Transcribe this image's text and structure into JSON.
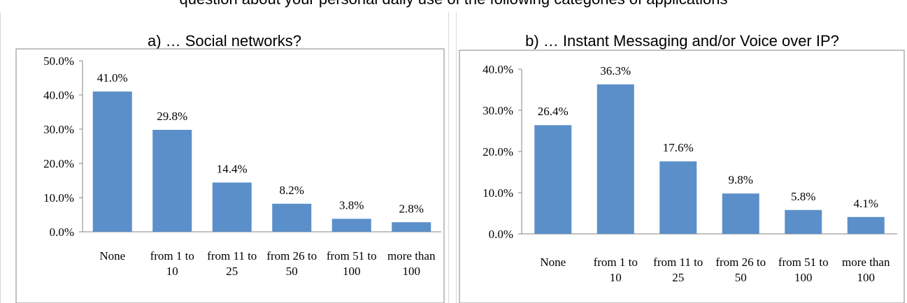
{
  "header": {
    "text": "question about your personal daily use of the following categories of applications"
  },
  "colors": {
    "bar": "#5b8fc9",
    "frame": "#868686"
  },
  "chart_data": [
    {
      "type": "bar",
      "title": "a) … Social networks?",
      "categories": [
        [
          "None"
        ],
        [
          "from 1 to",
          "10"
        ],
        [
          "from 11 to",
          "25"
        ],
        [
          "from 26 to",
          "50"
        ],
        [
          "from 51 to",
          "100"
        ],
        [
          "more than",
          "100"
        ]
      ],
      "values": [
        41.0,
        29.8,
        14.4,
        8.2,
        3.8,
        2.8
      ],
      "value_labels": [
        "41.0%",
        "29.8%",
        "14.4%",
        "8.2%",
        "3.8%",
        "2.8%"
      ],
      "yticks": [
        "0.0%",
        "10.0%",
        "20.0%",
        "30.0%",
        "40.0%",
        "50.0%"
      ],
      "ylim": [
        0,
        50
      ],
      "grid": false
    },
    {
      "type": "bar",
      "title": "b) … Instant Messaging and/or Voice over IP?",
      "categories": [
        [
          "None"
        ],
        [
          "from 1 to",
          "10"
        ],
        [
          "from 11 to",
          "25"
        ],
        [
          "from 26 to",
          "50"
        ],
        [
          "from 51 to",
          "100"
        ],
        [
          "more than",
          "100"
        ]
      ],
      "values": [
        26.4,
        36.3,
        17.6,
        9.8,
        5.8,
        4.1
      ],
      "value_labels": [
        "26.4%",
        "36.3%",
        "17.6%",
        "9.8%",
        "5.8%",
        "4.1%"
      ],
      "yticks": [
        "0.0%",
        "10.0%",
        "20.0%",
        "30.0%",
        "40.0%"
      ],
      "ylim": [
        0,
        40
      ],
      "grid": false
    }
  ]
}
